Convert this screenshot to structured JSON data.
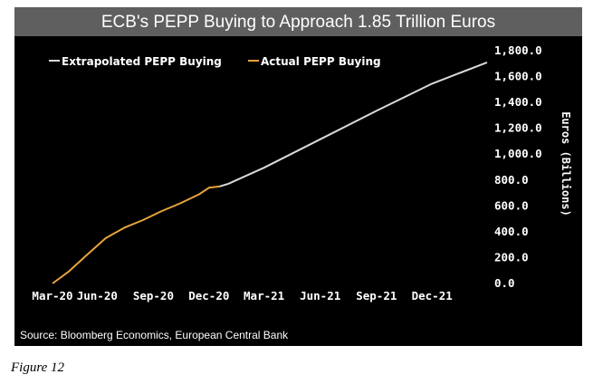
{
  "figure": {
    "title": "ECB's PEPP Buying to Approach 1.85 Trillion Euros",
    "source": "Source: Bloomberg Economics, European Central Bank",
    "caption": "Figure 12"
  },
  "chart_data": {
    "type": "line",
    "title": "ECB's PEPP Buying to Approach 1.85 Trillion Euros",
    "xlabel": "",
    "ylabel": "Euros (Billions)",
    "ylim": [
      0,
      1800
    ],
    "x_ticks": [
      "Mar-20",
      "Jun-20",
      "Sep-20",
      "Dec-20",
      "Mar-21",
      "Jun-21",
      "Sep-21",
      "Dec-21"
    ],
    "y_ticks": [
      "0.0",
      "200.0",
      "400.0",
      "600.0",
      "800.0",
      "1,000.0",
      "1,200.0",
      "1,400.0",
      "1,600.0",
      "1,800.0"
    ],
    "legend_position": "top-left",
    "grid": false,
    "series": [
      {
        "name": "Extrapolated PEPP Buying",
        "color": "#d9d9d9",
        "points": [
          [
            "2020-12-18",
            750
          ],
          [
            "2021-01-01",
            770
          ],
          [
            "2021-03-01",
            895
          ],
          [
            "2021-06-01",
            1115
          ],
          [
            "2021-09-01",
            1335
          ],
          [
            "2021-12-01",
            1545
          ],
          [
            "2022-03-01",
            1710
          ]
        ]
      },
      {
        "name": "Actual PEPP Buying",
        "color": "#e8a33d",
        "points": [
          [
            "2020-03-20",
            0
          ],
          [
            "2020-04-15",
            90
          ],
          [
            "2020-05-15",
            220
          ],
          [
            "2020-06-15",
            350
          ],
          [
            "2020-07-15",
            430
          ],
          [
            "2020-08-15",
            490
          ],
          [
            "2020-09-15",
            560
          ],
          [
            "2020-10-15",
            620
          ],
          [
            "2020-11-15",
            690
          ],
          [
            "2020-12-01",
            740
          ],
          [
            "2020-12-18",
            750
          ]
        ]
      }
    ]
  }
}
